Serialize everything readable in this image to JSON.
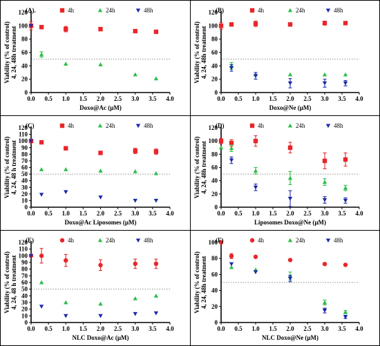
{
  "colors": {
    "4h": "#e8262a",
    "24h": "#2ebd4a",
    "48h": "#1e2aa8",
    "reference": "#8c8c8c"
  },
  "chart_data": [
    {
      "panel": "(A).",
      "type": "scatter",
      "xlabel": "Doxo@Ac (µM)",
      "ylabel": [
        "Viability (% of control)",
        "4, 24, 48h treatment"
      ],
      "xlim": [
        0,
        4
      ],
      "ylim": [
        0,
        120
      ],
      "xticks": [
        "0.0",
        "0.5",
        "1.0",
        "1.5",
        "2.0",
        "2.5",
        "3.0",
        "3.5",
        "4.0"
      ],
      "yticks": [
        "0",
        "20",
        "40",
        "60",
        "80",
        "100",
        "120"
      ],
      "reference_y": 50,
      "legend": [
        "4h",
        "24h",
        "48h"
      ],
      "series": [
        {
          "name": "4h",
          "marker": "square",
          "points": [
            [
              0,
              100,
              6
            ],
            [
              0.3,
              98,
              0
            ],
            [
              1,
              95,
              4
            ],
            [
              2,
              95,
              0
            ],
            [
              3,
              92,
              0
            ],
            [
              3.6,
              91,
              0
            ]
          ]
        },
        {
          "name": "24h",
          "marker": "triangle",
          "points": [
            [
              0.3,
              57,
              4
            ],
            [
              1,
              43,
              0
            ],
            [
              2,
              42,
              0
            ],
            [
              3,
              27,
              0
            ],
            [
              3.6,
              21,
              0
            ]
          ]
        },
        {
          "name": "48h",
          "marker": "tri-down",
          "points": [
            [
              0,
              100,
              0
            ]
          ]
        }
      ]
    },
    {
      "panel": "(B)",
      "type": "scatter",
      "xlabel": "Doxo@Ne (µM)",
      "ylabel": [
        "Viability (% of control)",
        "4, 24, 48h treatment"
      ],
      "xlim": [
        0,
        4
      ],
      "ylim": [
        0,
        120
      ],
      "xticks": [
        "0.0",
        "0.5",
        "1.0",
        "1.5",
        "2.0",
        "2.5",
        "3.0",
        "3.5",
        "4.0"
      ],
      "yticks": [
        "0",
        "20",
        "40",
        "60",
        "80",
        "100",
        "120"
      ],
      "reference_y": 50,
      "legend": [
        "4h",
        "24h",
        "48h"
      ],
      "series": [
        {
          "name": "4h",
          "marker": "square",
          "points": [
            [
              0,
              100,
              5
            ],
            [
              0.3,
              102,
              0
            ],
            [
              1,
              103,
              4
            ],
            [
              2,
              102,
              0
            ],
            [
              3,
              104,
              3
            ],
            [
              3.6,
              104,
              0
            ]
          ]
        },
        {
          "name": "24h",
          "marker": "triangle",
          "points": [
            [
              0.3,
              40,
              5
            ],
            [
              1,
              27,
              0
            ],
            [
              2,
              27,
              0
            ],
            [
              3,
              27,
              0
            ],
            [
              3.6,
              27,
              0
            ]
          ]
        },
        {
          "name": "48h",
          "marker": "tri-down",
          "points": [
            [
              0.3,
              37,
              5
            ],
            [
              1,
              25,
              5
            ],
            [
              2,
              14,
              7
            ],
            [
              3,
              14,
              6
            ],
            [
              3.6,
              14,
              4
            ]
          ]
        }
      ]
    },
    {
      "panel": "(C)",
      "type": "scatter",
      "xlabel": "Doxo@Ac Liposomes (µM)",
      "ylabel": [
        "Viability (% of control)",
        "4, 24, 48 h treatment"
      ],
      "xlim": [
        0,
        4
      ],
      "ylim": [
        0,
        120
      ],
      "xticks": [
        "0.0",
        "0.5",
        "1.0",
        "1.5",
        "2.0",
        "2.5",
        "3.0",
        "3.5",
        "4.0"
      ],
      "yticks": [
        "0",
        "10",
        "20",
        "30",
        "40",
        "50",
        "60",
        "70",
        "80",
        "90",
        "100",
        "110",
        "120"
      ],
      "reference_y": 50,
      "legend": [
        "4h",
        "24h",
        "48h"
      ],
      "series": [
        {
          "name": "4h",
          "marker": "square",
          "points": [
            [
              0,
              100,
              0
            ],
            [
              0.3,
              98,
              0
            ],
            [
              1,
              89,
              0
            ],
            [
              2,
              82,
              0
            ],
            [
              3,
              85,
              4
            ],
            [
              3.6,
              84,
              4
            ]
          ]
        },
        {
          "name": "24h",
          "marker": "triangle",
          "points": [
            [
              0.3,
              57,
              0
            ],
            [
              1,
              57,
              0
            ],
            [
              2,
              55,
              0
            ],
            [
              3,
              54,
              0
            ],
            [
              3.6,
              51,
              0
            ]
          ]
        },
        {
          "name": "48h",
          "marker": "tri-down",
          "points": [
            [
              0,
              100,
              0
            ],
            [
              0.3,
              19,
              0
            ],
            [
              1,
              23,
              0
            ],
            [
              2,
              15,
              0
            ],
            [
              3,
              10,
              0
            ],
            [
              3.6,
              10,
              0
            ]
          ]
        }
      ]
    },
    {
      "panel": "(D)",
      "type": "scatter",
      "xlabel": "Liposomes Doxo@Ne (µM)",
      "ylabel": [
        "Viability (% of control)",
        "4, 24, 48h treatment"
      ],
      "xlim": [
        0,
        4
      ],
      "ylim": [
        0,
        120
      ],
      "xticks": [
        "0.0",
        "0.5",
        "1.0",
        "1.5",
        "2.0",
        "2.5",
        "3.0",
        "3.5",
        "4.0"
      ],
      "yticks": [
        "0",
        "20",
        "40",
        "60",
        "80",
        "100",
        "120"
      ],
      "reference_y": 50,
      "legend": [
        "4h",
        "24h",
        "48h"
      ],
      "series": [
        {
          "name": "4h",
          "marker": "square",
          "points": [
            [
              0,
              100,
              4
            ],
            [
              0.3,
              97,
              5
            ],
            [
              1,
              100,
              8
            ],
            [
              2,
              90,
              8
            ],
            [
              3,
              70,
              12
            ],
            [
              3.6,
              72,
              10
            ]
          ]
        },
        {
          "name": "24h",
          "marker": "triangle",
          "points": [
            [
              0,
              90,
              0
            ],
            [
              0.3,
              89,
              5
            ],
            [
              1,
              55,
              5
            ],
            [
              2,
              44,
              10
            ],
            [
              3,
              38,
              5
            ],
            [
              3.6,
              29,
              4
            ]
          ]
        },
        {
          "name": "48h",
          "marker": "tri-down",
          "points": [
            [
              0.3,
              71,
              5
            ],
            [
              1,
              30,
              5
            ],
            [
              2,
              13,
              12
            ],
            [
              3,
              11,
              5
            ],
            [
              3.6,
              10,
              4
            ]
          ]
        }
      ]
    },
    {
      "panel": "(E)",
      "type": "scatter",
      "xlabel": "NLC Doxo@Ac (µM)",
      "ylabel": [
        "Viability (% of control)",
        "4, 24, 48 h treatment"
      ],
      "xlim": [
        0,
        4
      ],
      "ylim": [
        0,
        120
      ],
      "xticks": [
        "0.0",
        "0.5",
        "1.0",
        "1.5",
        "2.0",
        "2.5",
        "3.0",
        "3.5",
        "4.0"
      ],
      "yticks": [
        "0",
        "10",
        "20",
        "30",
        "40",
        "50",
        "60",
        "70",
        "80",
        "90",
        "100",
        "110",
        "120"
      ],
      "reference_y": 50,
      "legend": [
        "4h",
        "24h",
        "48h"
      ],
      "series": [
        {
          "name": "4h",
          "marker": "circle",
          "points": [
            [
              0,
              100,
              0
            ],
            [
              0.3,
              100,
              11
            ],
            [
              1,
              93,
              9
            ],
            [
              2,
              86,
              8
            ],
            [
              3,
              88,
              7
            ],
            [
              3.6,
              88,
              7
            ]
          ]
        },
        {
          "name": "24h",
          "marker": "triangle",
          "points": [
            [
              0.3,
              60,
              0
            ],
            [
              1,
              30,
              0
            ],
            [
              2,
              28,
              0
            ],
            [
              3,
              36,
              0
            ],
            [
              3.6,
              40,
              0
            ]
          ]
        },
        {
          "name": "48h",
          "marker": "tri-down",
          "points": [
            [
              0,
              100,
              0
            ],
            [
              0.3,
              24,
              0
            ],
            [
              1,
              10,
              0
            ],
            [
              2,
              10,
              0
            ],
            [
              3,
              13,
              0
            ],
            [
              3.6,
              14,
              0
            ]
          ]
        }
      ]
    },
    {
      "panel": "(F)",
      "type": "scatter",
      "xlabel": "NLC Doxo@Ne (µM)",
      "ylabel": [
        "Viability (% of control)",
        "4, 24, 48h treatment"
      ],
      "xlim": [
        0,
        4
      ],
      "ylim": [
        0,
        100
      ],
      "xticks": [
        "0.0",
        "0.5",
        "1.0",
        "1.5",
        "2.0",
        "2.5",
        "3.0",
        "3.5",
        "4.0"
      ],
      "yticks": [
        "0",
        "20",
        "40",
        "60",
        "80",
        "100"
      ],
      "reference_y": 50,
      "legend": [
        "4h",
        "24h",
        "48h"
      ],
      "series": [
        {
          "name": "4h",
          "marker": "circle",
          "points": [
            [
              0,
              100,
              0
            ],
            [
              0.3,
              83,
              3
            ],
            [
              1,
              82,
              0
            ],
            [
              2,
              78,
              0
            ],
            [
              3,
              73,
              0
            ],
            [
              3.6,
              72,
              0
            ]
          ]
        },
        {
          "name": "24h",
          "marker": "triangle",
          "points": [
            [
              0.3,
              69,
              0
            ],
            [
              1,
              66,
              0
            ],
            [
              2,
              58,
              5
            ],
            [
              3,
              25,
              3
            ],
            [
              3.6,
              13,
              2
            ]
          ]
        },
        {
          "name": "48h",
          "marker": "tri-down",
          "points": [
            [
              0.3,
              73,
              0
            ],
            [
              1,
              63,
              0
            ],
            [
              2,
              55,
              4
            ],
            [
              3,
              15,
              3
            ],
            [
              3.6,
              7,
              2
            ]
          ]
        }
      ]
    }
  ]
}
